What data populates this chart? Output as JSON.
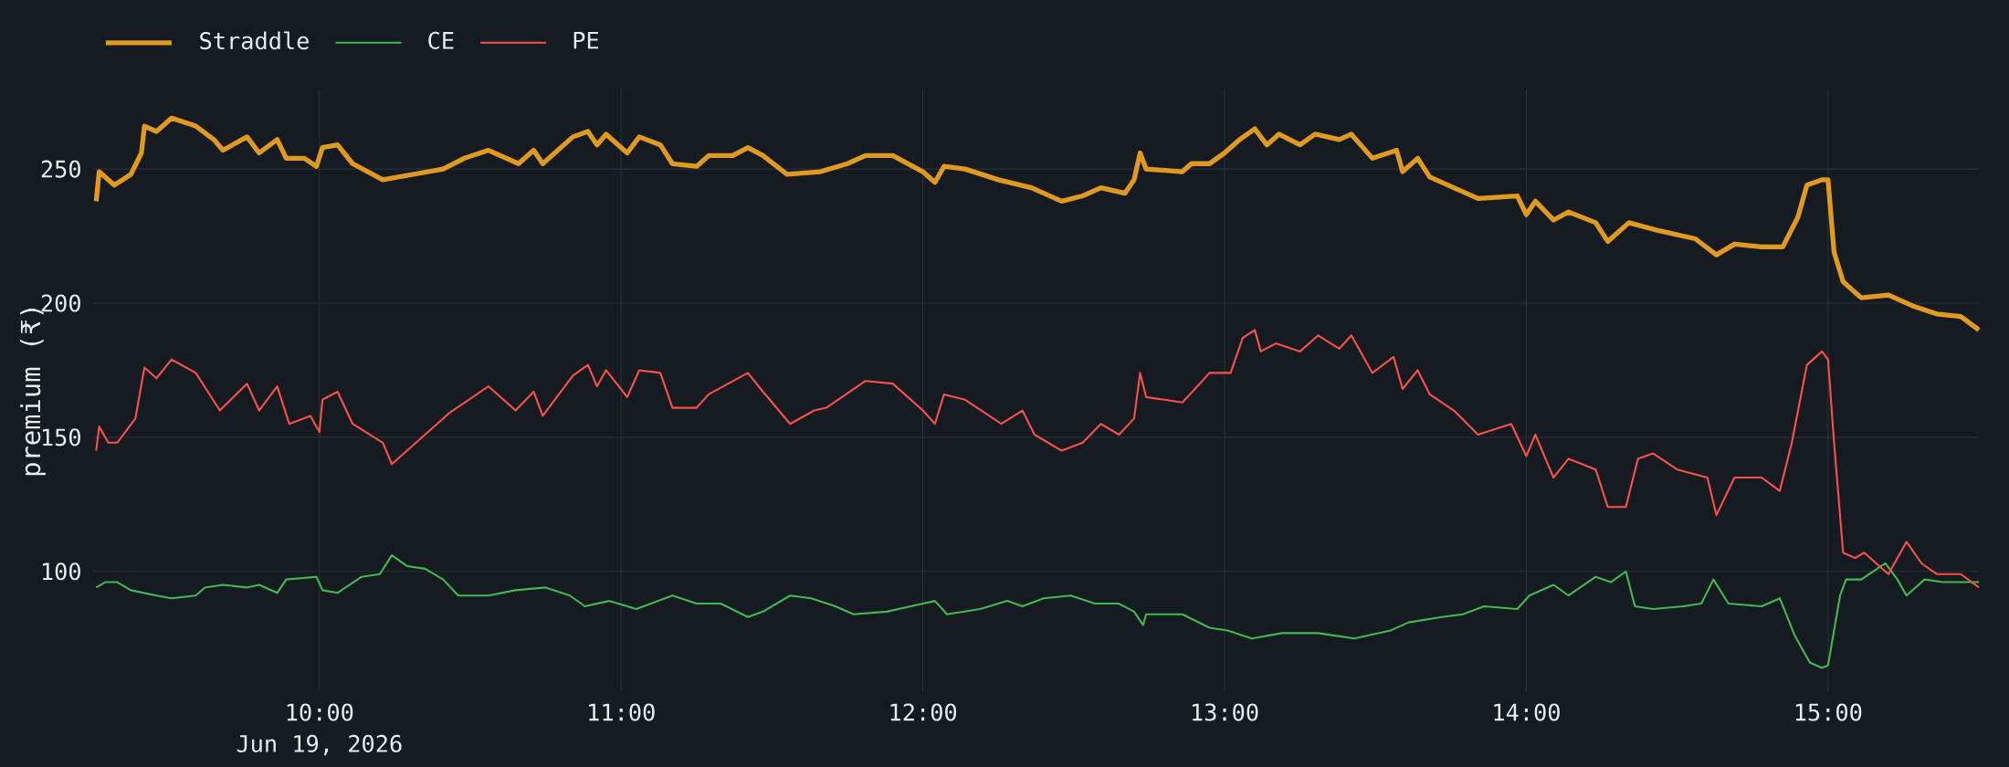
{
  "chart_data": {
    "type": "line",
    "ylabel": "premium (₹)",
    "annotations": [
      "Jun 19, 2026"
    ],
    "xlim": [
      9.25,
      15.5
    ],
    "ylim": [
      55,
      280
    ],
    "xticks": [
      {
        "value": 10,
        "label": "10:00"
      },
      {
        "value": 11,
        "label": "11:00"
      },
      {
        "value": 12,
        "label": "12:00"
      },
      {
        "value": 13,
        "label": "13:00"
      },
      {
        "value": 14,
        "label": "14:00"
      },
      {
        "value": 15,
        "label": "15:00"
      }
    ],
    "yticks": [
      100,
      150,
      200,
      250
    ],
    "grid": true,
    "legend": "top left",
    "marker": "none",
    "series": [
      {
        "name": "Straddle",
        "color": "#e09a1f",
        "x": [
          9.26,
          9.27,
          9.32,
          9.375,
          9.41,
          9.42,
          9.46,
          9.51,
          9.59,
          9.65,
          9.68,
          9.76,
          9.8,
          9.86,
          9.89,
          9.95,
          9.99,
          10.01,
          10.06,
          10.11,
          10.21,
          10.31,
          10.41,
          10.48,
          10.56,
          10.66,
          10.71,
          10.74,
          10.84,
          10.89,
          10.92,
          10.95,
          11.02,
          11.06,
          11.13,
          11.17,
          11.25,
          11.29,
          11.37,
          11.42,
          11.47,
          11.55,
          11.66,
          11.75,
          11.81,
          11.9,
          12.0,
          12.04,
          12.07,
          12.14,
          12.25,
          12.36,
          12.46,
          12.53,
          12.59,
          12.67,
          12.7,
          12.72,
          12.74,
          12.86,
          12.89,
          12.95,
          13.0,
          13.05,
          13.1,
          13.14,
          13.18,
          13.25,
          13.3,
          13.38,
          13.42,
          13.49,
          13.57,
          13.59,
          13.64,
          13.68,
          13.76,
          13.84,
          13.97,
          14.0,
          14.03,
          14.09,
          14.14,
          14.23,
          14.27,
          14.34,
          14.44,
          14.56,
          14.63,
          14.69,
          14.78,
          14.85,
          14.9,
          14.93,
          14.98,
          15.0,
          15.02,
          15.05,
          15.11,
          15.2,
          15.28,
          15.36,
          15.44,
          15.5
        ],
        "values": [
          238,
          249,
          244,
          248,
          256,
          266,
          264,
          269,
          266,
          261,
          257,
          262,
          256,
          261,
          254,
          254,
          251,
          258,
          259,
          252,
          246,
          248,
          250,
          254,
          257,
          252,
          257,
          252,
          262,
          264,
          259,
          263,
          256,
          262,
          259,
          252,
          251,
          255,
          255,
          258,
          255,
          248,
          249,
          252,
          255,
          255,
          249,
          245,
          251,
          250,
          246,
          243,
          238,
          240,
          243,
          241,
          246,
          256,
          250,
          249,
          252,
          252,
          256,
          261,
          265,
          259,
          263,
          259,
          263,
          261,
          263,
          254,
          257,
          249,
          254,
          247,
          243,
          239,
          240,
          233,
          238,
          231,
          234,
          230,
          223,
          230,
          227,
          224,
          218,
          222,
          221,
          221,
          232,
          244,
          246,
          246,
          219,
          208,
          202,
          203,
          199,
          196,
          195,
          190
        ]
      },
      {
        "name": "CE",
        "color": "#3fb950",
        "x": [
          9.26,
          9.29,
          9.33,
          9.375,
          9.46,
          9.51,
          9.59,
          9.62,
          9.68,
          9.76,
          9.8,
          9.86,
          9.89,
          9.99,
          10.01,
          10.06,
          10.14,
          10.2,
          10.24,
          10.29,
          10.35,
          10.41,
          10.46,
          10.56,
          10.65,
          10.75,
          10.83,
          10.88,
          10.96,
          11.05,
          11.17,
          11.25,
          11.33,
          11.42,
          11.47,
          11.56,
          11.63,
          11.71,
          11.77,
          11.88,
          11.96,
          12.04,
          12.08,
          12.19,
          12.28,
          12.33,
          12.4,
          12.49,
          12.57,
          12.65,
          12.7,
          12.73,
          12.74,
          12.86,
          12.95,
          13.01,
          13.09,
          13.19,
          13.31,
          13.43,
          13.55,
          13.61,
          13.72,
          13.79,
          13.86,
          13.97,
          14.01,
          14.09,
          14.14,
          14.23,
          14.28,
          14.33,
          14.36,
          14.42,
          14.52,
          14.58,
          14.62,
          14.67,
          14.78,
          14.84,
          14.89,
          14.94,
          14.98,
          15.0,
          15.04,
          15.06,
          15.11,
          15.19,
          15.23,
          15.26,
          15.32,
          15.38,
          15.5
        ],
        "values": [
          94,
          96,
          96,
          93,
          91,
          90,
          91,
          94,
          95,
          94,
          95,
          92,
          97,
          98,
          93,
          92,
          98,
          99,
          106,
          102,
          101,
          97,
          91,
          91,
          93,
          94,
          91,
          87,
          89,
          86,
          91,
          88,
          88,
          83,
          85,
          91,
          90,
          87,
          84,
          85,
          87,
          89,
          84,
          86,
          89,
          87,
          90,
          91,
          88,
          88,
          85,
          80,
          84,
          84,
          79,
          78,
          75,
          77,
          77,
          75,
          78,
          81,
          83,
          84,
          87,
          86,
          91,
          95,
          91,
          98,
          96,
          100,
          87,
          86,
          87,
          88,
          97,
          88,
          87,
          90,
          76,
          66,
          64,
          65,
          91,
          97,
          97,
          103,
          97,
          91,
          97,
          96,
          96
        ]
      },
      {
        "name": "PE",
        "color": "#f85149",
        "x": [
          9.26,
          9.27,
          9.3,
          9.33,
          9.39,
          9.42,
          9.46,
          9.51,
          9.59,
          9.63,
          9.67,
          9.76,
          9.8,
          9.86,
          9.9,
          9.97,
          10.0,
          10.01,
          10.06,
          10.11,
          10.21,
          10.24,
          10.31,
          10.43,
          10.56,
          10.65,
          10.71,
          10.74,
          10.84,
          10.89,
          10.92,
          10.95,
          11.02,
          11.06,
          11.13,
          11.17,
          11.25,
          11.29,
          11.42,
          11.47,
          11.56,
          11.64,
          11.68,
          11.81,
          11.9,
          12.0,
          12.04,
          12.07,
          12.14,
          12.26,
          12.33,
          12.37,
          12.46,
          12.53,
          12.59,
          12.65,
          12.7,
          12.72,
          12.74,
          12.86,
          12.91,
          12.95,
          13.02,
          13.06,
          13.1,
          13.12,
          13.17,
          13.25,
          13.31,
          13.38,
          13.42,
          13.49,
          13.56,
          13.59,
          13.64,
          13.68,
          13.76,
          13.84,
          13.95,
          14.0,
          14.03,
          14.09,
          14.14,
          14.23,
          14.27,
          14.33,
          14.37,
          14.42,
          14.5,
          14.6,
          14.63,
          14.69,
          14.78,
          14.84,
          14.88,
          14.93,
          14.98,
          15.0,
          15.02,
          15.05,
          15.09,
          15.12,
          15.2,
          15.26,
          15.31,
          15.36,
          15.44,
          15.5
        ],
        "values": [
          145,
          154,
          148,
          148,
          157,
          176,
          172,
          179,
          174,
          167,
          160,
          170,
          160,
          169,
          155,
          158,
          152,
          164,
          167,
          155,
          148,
          140,
          147,
          159,
          169,
          160,
          167,
          158,
          173,
          177,
          169,
          175,
          165,
          175,
          174,
          161,
          161,
          166,
          174,
          167,
          155,
          160,
          161,
          171,
          170,
          160,
          155,
          166,
          164,
          155,
          160,
          151,
          145,
          148,
          155,
          151,
          157,
          174,
          165,
          163,
          169,
          174,
          174,
          187,
          190,
          182,
          185,
          182,
          188,
          183,
          188,
          174,
          180,
          168,
          175,
          166,
          160,
          151,
          155,
          143,
          151,
          135,
          142,
          138,
          124,
          124,
          142,
          144,
          138,
          135,
          121,
          135,
          135,
          130,
          148,
          177,
          182,
          179,
          148,
          107,
          105,
          107,
          99,
          111,
          103,
          99,
          99,
          94
        ]
      }
    ]
  }
}
